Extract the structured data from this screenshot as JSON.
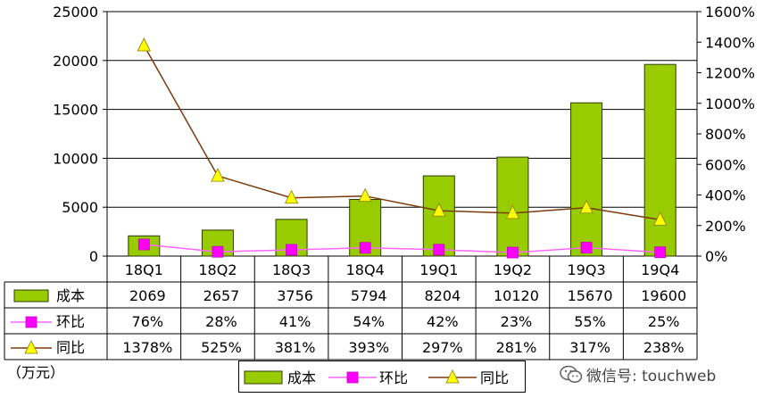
{
  "unit_label": "（万元）",
  "watermark": {
    "text": "微信号: touchweb",
    "icon": "wechat-icon"
  },
  "colors": {
    "bar": "#99cc00",
    "bar_stroke": "#2e3a00",
    "qoq_line": "#ff66ff",
    "qoq_marker": "#ff00ff",
    "yoy_line": "#7a3b0a",
    "yoy_marker": "#ffff00"
  },
  "chart_data": {
    "type": "bar",
    "categories": [
      "18Q1",
      "18Q2",
      "18Q3",
      "18Q4",
      "19Q1",
      "19Q2",
      "19Q3",
      "19Q4"
    ],
    "series": [
      {
        "name": "成本",
        "type": "bar",
        "axis": "left",
        "values": [
          2069,
          2657,
          3756,
          5794,
          8204,
          10120,
          15670,
          19600
        ],
        "labels": [
          "2069",
          "2657",
          "3756",
          "5794",
          "8204",
          "10120",
          "15670",
          "19600"
        ]
      },
      {
        "name": "环比",
        "type": "line",
        "axis": "right",
        "values": [
          76,
          28,
          41,
          54,
          42,
          23,
          55,
          25
        ],
        "labels": [
          "76%",
          "28%",
          "41%",
          "54%",
          "42%",
          "23%",
          "55%",
          "25%"
        ]
      },
      {
        "name": "同比",
        "type": "line",
        "axis": "right",
        "values": [
          1378,
          525,
          381,
          393,
          297,
          281,
          317,
          238
        ],
        "labels": [
          "1378%",
          "525%",
          "381%",
          "393%",
          "297%",
          "281%",
          "317%",
          "238%"
        ]
      }
    ],
    "y_left": {
      "min": 0,
      "max": 25000,
      "ticks": [
        "0",
        "5000",
        "10000",
        "15000",
        "20000",
        "25000"
      ]
    },
    "y_right": {
      "min": 0,
      "max": 1600,
      "ticks": [
        "0%",
        "200%",
        "400%",
        "600%",
        "800%",
        "1000%",
        "1200%",
        "1400%",
        "1600%"
      ]
    },
    "grid": true,
    "legend_position": "bottom",
    "data_table": true
  }
}
